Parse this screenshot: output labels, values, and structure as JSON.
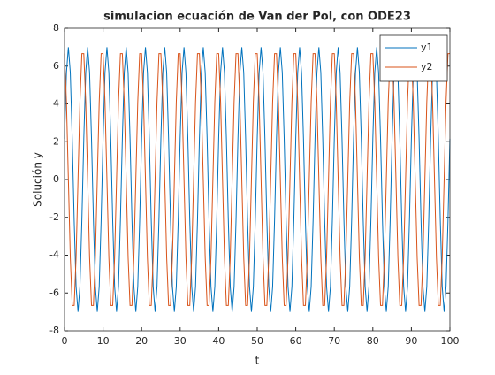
{
  "chart_data": {
    "type": "line",
    "title": "simulacion ecuación de Van der Pol, con ODE23",
    "x_label": "t",
    "y_label": "Solución y",
    "x": [
      0,
      0.5,
      1,
      1.5,
      2,
      2.5,
      3,
      3.5,
      4,
      4.5,
      5,
      5.5,
      6,
      6.5,
      7,
      7.5,
      8,
      8.5,
      9,
      9.5,
      10,
      10.5,
      11,
      11.5,
      12,
      12.5,
      13,
      13.5,
      14,
      14.5,
      15,
      15.5,
      16,
      16.5,
      17,
      17.5,
      18,
      18.5,
      19,
      19.5,
      20,
      20.5,
      21,
      21.5,
      22,
      22.5,
      23,
      23.5,
      24,
      24.5,
      25,
      25.5,
      26,
      26.5,
      27,
      27.5,
      28,
      28.5,
      29,
      29.5,
      30,
      30.5,
      31,
      31.5,
      32,
      32.5,
      33,
      33.5,
      34,
      34.5,
      35,
      35.5,
      36,
      36.5,
      37,
      37.5,
      38,
      38.5,
      39,
      39.5,
      40,
      40.5,
      41,
      41.5,
      42,
      42.5,
      43,
      43.5,
      44,
      44.5,
      45,
      45.5,
      46,
      46.5,
      47,
      47.5,
      48,
      48.5,
      49,
      49.5,
      50,
      50.5,
      51,
      51.5,
      52,
      52.5,
      53,
      53.5,
      54,
      54.5,
      55,
      55.5,
      56,
      56.5,
      57,
      57.5,
      58,
      58.5,
      59,
      59.5,
      60,
      60.5,
      61,
      61.5,
      62,
      62.5,
      63,
      63.5,
      64,
      64.5,
      65,
      65.5,
      66,
      66.5,
      67,
      67.5,
      68,
      68.5,
      69,
      69.5,
      70,
      70.5,
      71,
      71.5,
      72,
      72.5,
      73,
      73.5,
      74,
      74.5,
      75,
      75.5,
      76,
      76.5,
      77,
      77.5,
      78,
      78.5,
      79,
      79.5,
      80,
      80.5,
      81,
      81.5,
      82,
      82.5,
      83,
      83.5,
      84,
      84.5,
      85,
      85.5,
      86,
      86.5,
      87,
      87.5,
      88,
      88.5,
      89,
      89.5,
      90,
      90.5,
      91,
      91.5,
      92,
      92.5,
      93,
      93.5,
      94,
      94.5,
      95,
      95.5,
      96,
      96.5,
      97,
      97.5,
      98,
      98.5,
      99,
      99.5,
      100
    ],
    "series": [
      {
        "name": "y1",
        "color": "#0072bd",
        "values": [
          2.16,
          5.66,
          7,
          5.66,
          2.16,
          -2.16,
          -5.66,
          -7,
          -5.66,
          -2.16,
          2.16,
          5.66,
          7,
          5.66,
          2.16,
          -2.16,
          -5.66,
          -7,
          -5.66,
          -2.16,
          2.16,
          5.66,
          7,
          5.66,
          2.16,
          -2.16,
          -5.66,
          -7,
          -5.66,
          -2.16,
          2.16,
          5.66,
          7,
          5.66,
          2.16,
          -2.16,
          -5.66,
          -7,
          -5.66,
          -2.16,
          2.16,
          5.66,
          7,
          5.66,
          2.16,
          -2.16,
          -5.66,
          -7,
          -5.66,
          -2.16,
          2.16,
          5.66,
          7,
          5.66,
          2.16,
          -2.16,
          -5.66,
          -7,
          -5.66,
          -2.16,
          2.16,
          5.66,
          7,
          5.66,
          2.16,
          -2.16,
          -5.66,
          -7,
          -5.66,
          -2.16,
          2.16,
          5.66,
          7,
          5.66,
          2.16,
          -2.16,
          -5.66,
          -7,
          -5.66,
          -2.16,
          2.16,
          5.66,
          7,
          5.66,
          2.16,
          -2.16,
          -5.66,
          -7,
          -5.66,
          -2.16,
          2.16,
          5.66,
          7,
          5.66,
          2.16,
          -2.16,
          -5.66,
          -7,
          -5.66,
          -2.16,
          2.16,
          5.66,
          7,
          5.66,
          2.16,
          -2.16,
          -5.66,
          -7,
          -5.66,
          -2.16,
          2.16,
          5.66,
          7,
          5.66,
          2.16,
          -2.16,
          -5.66,
          -7,
          -5.66,
          -2.16,
          2.16,
          5.66,
          7,
          5.66,
          2.16,
          -2.16,
          -5.66,
          -7,
          -5.66,
          -2.16,
          2.16,
          5.66,
          7,
          5.66,
          2.16,
          -2.16,
          -5.66,
          -7,
          -5.66,
          -2.16,
          2.16,
          5.66,
          7,
          5.66,
          2.16,
          -2.16,
          -5.66,
          -7,
          -5.66,
          -2.16,
          2.16,
          5.66,
          7,
          5.66,
          2.16,
          -2.16,
          -5.66,
          -7,
          -5.66,
          -2.16,
          2.16,
          5.66,
          7,
          5.66,
          2.16,
          -2.16,
          -5.66,
          -7,
          -5.66,
          -2.16,
          2.16,
          5.66,
          7,
          5.66,
          2.16,
          -2.16,
          -5.66,
          -7,
          -5.66,
          -2.16,
          2.16,
          5.66,
          7,
          5.66,
          2.16,
          -2.16,
          -5.66,
          -7,
          -5.66,
          -2.16,
          2.16,
          5.66,
          7,
          5.66,
          2.16,
          -2.16,
          -5.66,
          -7,
          -5.66,
          -2.16,
          2.16
        ]
      },
      {
        "name": "y2",
        "color": "#d95319",
        "values": [
          6.66,
          4.11,
          0,
          -4.11,
          -6.66,
          -6.66,
          -4.11,
          0,
          4.11,
          6.66,
          6.66,
          4.11,
          0,
          -4.11,
          -6.66,
          -6.66,
          -4.11,
          0,
          4.11,
          6.66,
          6.66,
          4.11,
          0,
          -4.11,
          -6.66,
          -6.66,
          -4.11,
          0,
          4.11,
          6.66,
          6.66,
          4.11,
          0,
          -4.11,
          -6.66,
          -6.66,
          -4.11,
          0,
          4.11,
          6.66,
          6.66,
          4.11,
          0,
          -4.11,
          -6.66,
          -6.66,
          -4.11,
          0,
          4.11,
          6.66,
          6.66,
          4.11,
          0,
          -4.11,
          -6.66,
          -6.66,
          -4.11,
          0,
          4.11,
          6.66,
          6.66,
          4.11,
          0,
          -4.11,
          -6.66,
          -6.66,
          -4.11,
          0,
          4.11,
          6.66,
          6.66,
          4.11,
          0,
          -4.11,
          -6.66,
          -6.66,
          -4.11,
          0,
          4.11,
          6.66,
          6.66,
          4.11,
          0,
          -4.11,
          -6.66,
          -6.66,
          -4.11,
          0,
          4.11,
          6.66,
          6.66,
          4.11,
          0,
          -4.11,
          -6.66,
          -6.66,
          -4.11,
          0,
          4.11,
          6.66,
          6.66,
          4.11,
          0,
          -4.11,
          -6.66,
          -6.66,
          -4.11,
          0,
          4.11,
          6.66,
          6.66,
          4.11,
          0,
          -4.11,
          -6.66,
          -6.66,
          -4.11,
          0,
          4.11,
          6.66,
          6.66,
          4.11,
          0,
          -4.11,
          -6.66,
          -6.66,
          -4.11,
          0,
          4.11,
          6.66,
          6.66,
          4.11,
          0,
          -4.11,
          -6.66,
          -6.66,
          -4.11,
          0,
          4.11,
          6.66,
          6.66,
          4.11,
          0,
          -4.11,
          -6.66,
          -6.66,
          -4.11,
          0,
          4.11,
          6.66,
          6.66,
          4.11,
          0,
          -4.11,
          -6.66,
          -6.66,
          -4.11,
          0,
          4.11,
          6.66,
          6.66,
          4.11,
          0,
          -4.11,
          -6.66,
          -6.66,
          -4.11,
          0,
          4.11,
          6.66,
          6.66,
          4.11,
          0,
          -4.11,
          -6.66,
          -6.66,
          -4.11,
          0,
          4.11,
          6.66,
          6.66,
          4.11,
          0,
          -4.11,
          -6.66,
          -6.66,
          -4.11,
          0,
          4.11,
          6.66,
          6.66,
          4.11,
          0,
          -4.11,
          -6.66,
          -6.66,
          -4.11,
          0,
          4.11,
          6.66,
          6.66
        ]
      }
    ],
    "xlim": [
      0,
      100
    ],
    "xticks": [
      0,
      10,
      20,
      30,
      40,
      50,
      60,
      70,
      80,
      90,
      100
    ],
    "ylim": [
      -8,
      8
    ],
    "yticks": [
      -8,
      -6,
      -4,
      -2,
      0,
      2,
      4,
      6,
      8
    ],
    "legend": "top-right"
  }
}
